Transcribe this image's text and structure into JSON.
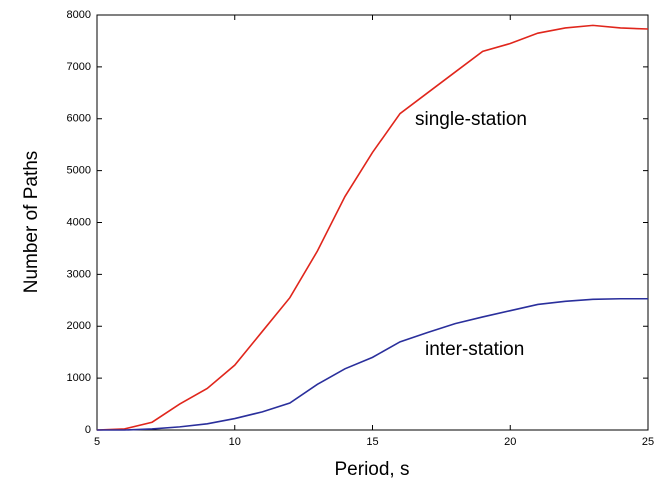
{
  "chart_data": {
    "type": "line",
    "x_label": "Period, s",
    "y_label": "Number of Paths",
    "x": [
      5,
      6,
      7,
      8,
      9,
      10,
      11,
      12,
      13,
      14,
      15,
      16,
      17,
      18,
      19,
      20,
      21,
      22,
      23,
      24,
      25
    ],
    "series": [
      {
        "name": "single-station",
        "color": "#e0261c",
        "values": [
          0,
          20,
          150,
          500,
          800,
          1250,
          1900,
          2550,
          3450,
          4500,
          5350,
          6100,
          6500,
          6900,
          7300,
          7450,
          7650,
          7750,
          7800,
          7750,
          7730
        ]
      },
      {
        "name": "inter-station",
        "color": "#2a2f9c",
        "values": [
          0,
          0,
          20,
          60,
          120,
          220,
          350,
          520,
          880,
          1180,
          1400,
          1700,
          1880,
          2050,
          2180,
          2300,
          2420,
          2480,
          2520,
          2530,
          2530
        ]
      }
    ],
    "xlim": [
      5,
      25
    ],
    "xticks": [
      5,
      10,
      15,
      20,
      25
    ],
    "ylim": [
      0,
      8000
    ],
    "yticks": [
      0,
      1000,
      2000,
      3000,
      4000,
      5000,
      6000,
      7000,
      8000
    ],
    "grid": false
  }
}
